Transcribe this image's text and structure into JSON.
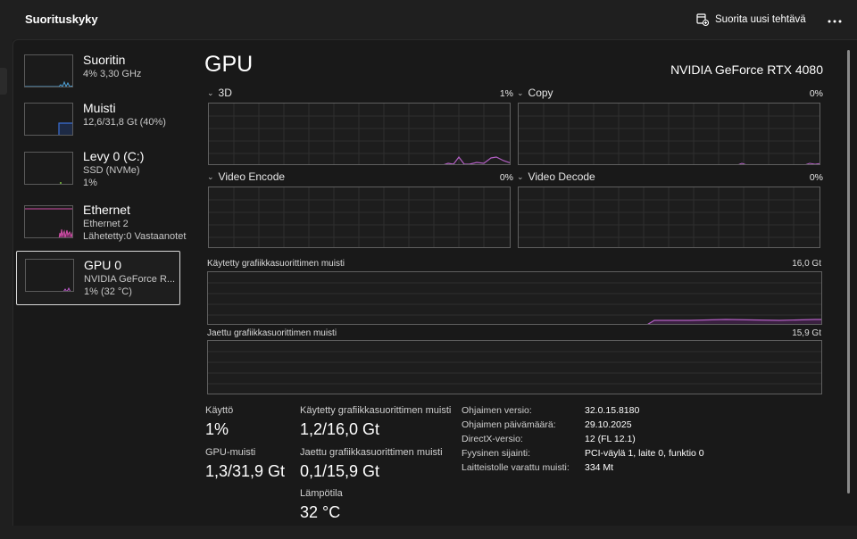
{
  "header": {
    "app_title": "Suorituskyky",
    "run_task_label": "Suorita uusi tehtävä",
    "more_icon": "more-icon"
  },
  "sidebar": {
    "devices": [
      {
        "name": "Suoritin",
        "line1": "4% 3,30 GHz",
        "line2": "",
        "color": "#4fa3d9"
      },
      {
        "name": "Muisti",
        "line1": "12,6/31,8 Gt (40%)",
        "line2": "",
        "color": "#3b6fd6"
      },
      {
        "name": "Levy 0 (C:)",
        "line1": "SSD (NVMe)",
        "line2": "1%",
        "color": "#7cc53e"
      },
      {
        "name": "Ethernet",
        "line1": "Ethernet 2",
        "line2": "Lähetetty:0 Vastaanotet",
        "color": "#d04fa7"
      },
      {
        "name": "GPU 0",
        "line1": "NVIDIA GeForce R...",
        "line2": "1% (32 °C)",
        "color": "#c25ed1"
      }
    ]
  },
  "main": {
    "title": "GPU",
    "model": "NVIDIA GeForce RTX 4080",
    "engines": [
      {
        "label": "3D",
        "percent": "1%"
      },
      {
        "label": "Copy",
        "percent": "0%"
      },
      {
        "label": "Video Encode",
        "percent": "0%"
      },
      {
        "label": "Video Decode",
        "percent": "0%"
      }
    ],
    "dedicated_memory": {
      "label": "Käytetty grafiikkasuorittimen muisti",
      "max": "16,0 Gt"
    },
    "shared_memory": {
      "label": "Jaettu grafiikkasuorittimen muisti",
      "max": "15,9 Gt"
    },
    "graph_color": "#b35fc4"
  },
  "stats": {
    "usage_label": "Käyttö",
    "usage_value": "1%",
    "gpu_memory_label": "GPU-muisti",
    "gpu_memory_value": "1,3/31,9 Gt",
    "dedicated_label": "Käytetty grafiikkasuorittimen muisti",
    "dedicated_value": "1,2/16,0 Gt",
    "shared_label": "Jaettu grafiikkasuorittimen muisti",
    "shared_value": "0,1/15,9 Gt",
    "temp_label": "Lämpötila",
    "temp_value": "32 °C"
  },
  "properties": [
    {
      "key": "Ohjaimen versio:",
      "value": "32.0.15.8180"
    },
    {
      "key": "Ohjaimen päivämäärä:",
      "value": "29.10.2025"
    },
    {
      "key": "DirectX-versio:",
      "value": "12 (FL 12.1)"
    },
    {
      "key": "Fyysinen sijainti:",
      "value": "PCI-väylä 1, laite 0, funktio 0"
    },
    {
      "key": "Laitteistolle varattu muisti:",
      "value": "334 Mt"
    }
  ]
}
